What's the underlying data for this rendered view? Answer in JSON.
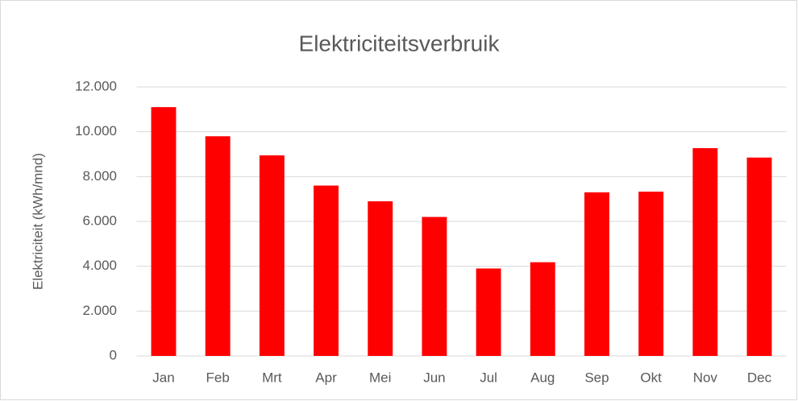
{
  "chart_data": {
    "type": "bar",
    "title": "Elektriciteitsverbruik",
    "y_label": "Elektriciteit (kWh/mnd)",
    "categories": [
      "Jan",
      "Feb",
      "Mrt",
      "Apr",
      "Mei",
      "Jun",
      "Jul",
      "Aug",
      "Sep",
      "Okt",
      "Nov",
      "Dec"
    ],
    "values": [
      11100,
      9800,
      8950,
      7600,
      6900,
      6200,
      3900,
      4180,
      7300,
      7330,
      9270,
      8850
    ],
    "color": "#ff0000",
    "ylim": [
      0,
      12000
    ],
    "yticks": [
      0,
      {
        "value": 2000,
        "label": "2.000"
      },
      {
        "value": 4000,
        "label": "4.000"
      },
      {
        "value": 6000,
        "label": "6.000"
      },
      {
        "value": 8000,
        "label": "8.000"
      },
      {
        "value": 10000,
        "label": "10.000"
      },
      {
        "value": 12000,
        "label": "12.000"
      }
    ],
    "grid": true
  }
}
